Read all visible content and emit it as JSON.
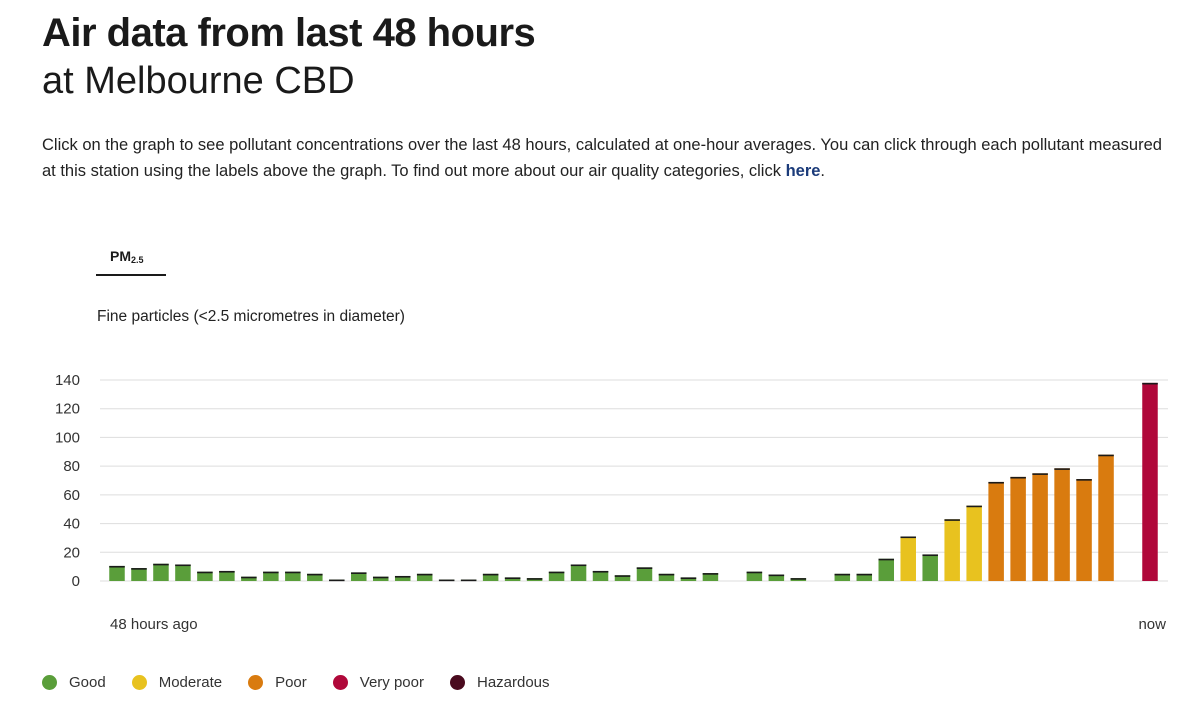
{
  "header": {
    "title": "Air data from last 48 hours",
    "subtitle": "at Melbourne CBD"
  },
  "intro": {
    "text": "Click on the graph to see pollutant concentrations over the last 48 hours, calculated at one-hour averages. You can click through each pollutant measured at this station using the labels above the graph. To find out more about our air quality categories, click ",
    "link_label": "here",
    "suffix": "."
  },
  "tabs": [
    {
      "label": "PM",
      "subscript": "2.5",
      "selected": true
    }
  ],
  "pollutant_description": "Fine particles (<2.5 micrometres in diameter)",
  "categories": {
    "Good": "#5a9e3a",
    "Moderate": "#e8c21f",
    "Poor": "#d97b0f",
    "Very poor": "#b0083a",
    "Hazardous": "#4a0a1e"
  },
  "legend": [
    {
      "label": "Good",
      "color": "#5a9e3a"
    },
    {
      "label": "Moderate",
      "color": "#e8c21f"
    },
    {
      "label": "Poor",
      "color": "#d97b0f"
    },
    {
      "label": "Very poor",
      "color": "#b0083a"
    },
    {
      "label": "Hazardous",
      "color": "#4a0a1e"
    }
  ],
  "chart_data": {
    "type": "bar",
    "ylim": [
      0,
      140
    ],
    "yticks": [
      0,
      20,
      40,
      60,
      80,
      100,
      120,
      140
    ],
    "grid": true,
    "x_start_label": "48 hours ago",
    "x_end_label": "now",
    "values": [
      10.5,
      9,
      12,
      11.5,
      6.5,
      7,
      3,
      6.5,
      6.5,
      5,
      1,
      6,
      3,
      3.5,
      5,
      1,
      1,
      5,
      2.5,
      2,
      6.5,
      11.5,
      7,
      4,
      9.5,
      5,
      2.5,
      5.5,
      null,
      6.5,
      4.5,
      2,
      null,
      5,
      5,
      15.5,
      31,
      18.5,
      43,
      52.5,
      69,
      72.5,
      75,
      78.5,
      71,
      88,
      null,
      138
    ],
    "value_categories": [
      "Good",
      "Good",
      "Good",
      "Good",
      "Good",
      "Good",
      "Good",
      "Good",
      "Good",
      "Good",
      "Good",
      "Good",
      "Good",
      "Good",
      "Good",
      "Good",
      "Good",
      "Good",
      "Good",
      "Good",
      "Good",
      "Good",
      "Good",
      "Good",
      "Good",
      "Good",
      "Good",
      "Good",
      null,
      "Good",
      "Good",
      "Good",
      null,
      "Good",
      "Good",
      "Good",
      "Moderate",
      "Good",
      "Moderate",
      "Moderate",
      "Poor",
      "Poor",
      "Poor",
      "Poor",
      "Poor",
      "Poor",
      null,
      "Very poor"
    ]
  }
}
